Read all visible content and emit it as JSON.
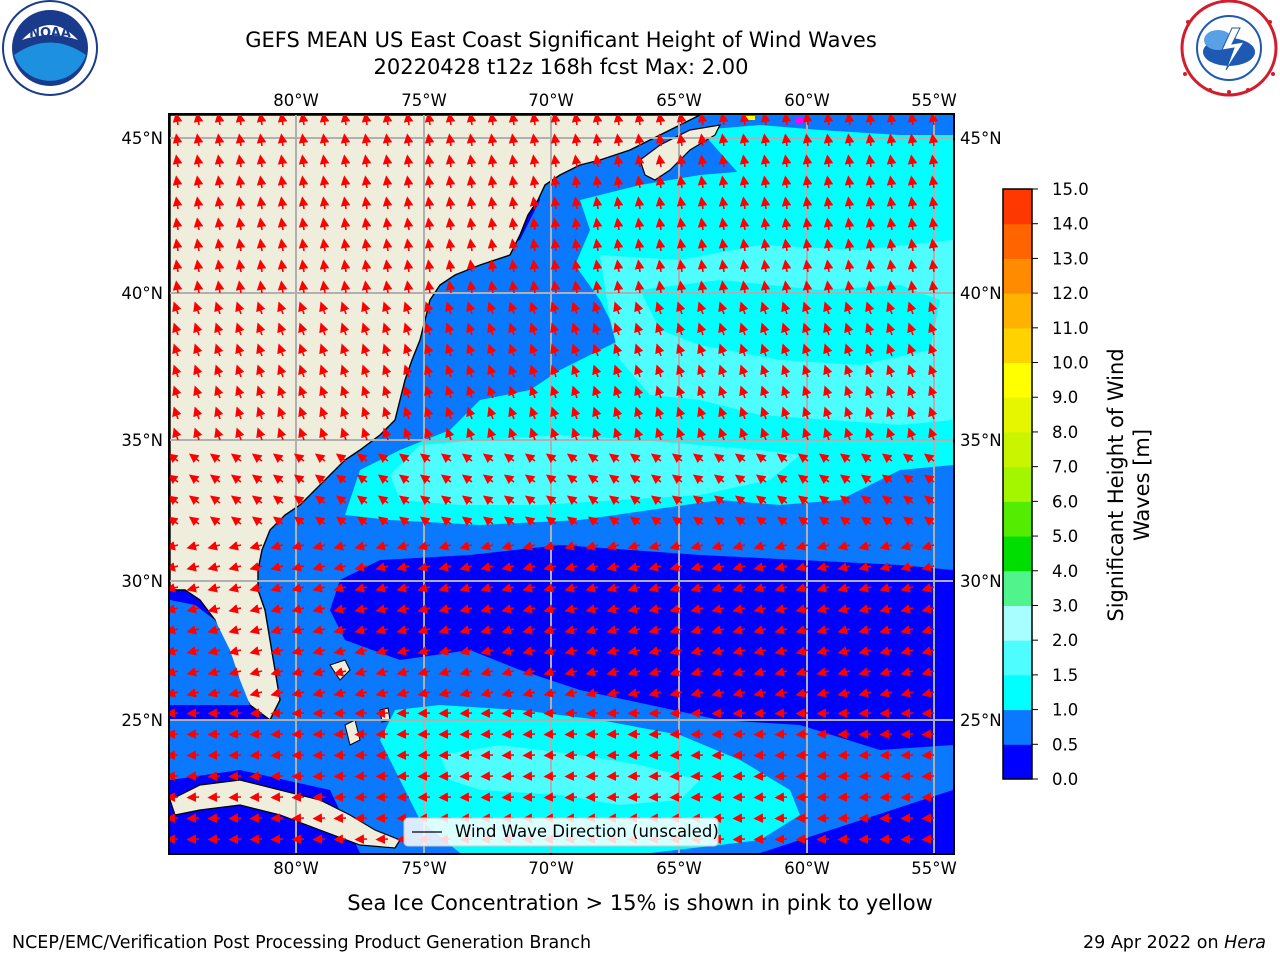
{
  "header": {
    "title_line1": "GEFS MEAN US East Coast Significant Height of Wind Waves",
    "title_line2": "20220428 t12z 168h fcst   Max: 2.00"
  },
  "logos": {
    "left": {
      "icon": "noaa-logo",
      "text": "NOAA",
      "ring_text": "NATIONAL OCEANIC AND ATMOSPHERIC ADMINISTRATION · U.S. DEPARTMENT OF COMMERCE"
    },
    "right": {
      "icon": "nws-logo",
      "ring_text": "NATIONAL WEATHER SERVICE"
    }
  },
  "map": {
    "lon_labels": [
      "80°W",
      "75°W",
      "70°W",
      "65°W",
      "60°W",
      "55°W"
    ],
    "lat_labels": [
      "45°N",
      "40°N",
      "35°N",
      "30°N",
      "25°N"
    ],
    "legend_label": "Wind Wave Direction (unscaled)",
    "arrow_color": "#ff0000",
    "land_color": "#efeddc"
  },
  "colorbar": {
    "title_line1": "Significant Height of Wind",
    "title_line2": "Waves [m]",
    "ticks": [
      "0.0",
      "0.5",
      "1.0",
      "1.5",
      "2.0",
      "3.0",
      "4.0",
      "5.0",
      "6.0",
      "7.0",
      "8.0",
      "9.0",
      "10.0",
      "11.0",
      "12.0",
      "13.0",
      "14.0",
      "15.0"
    ],
    "colors": [
      "#0000ff",
      "#0a78ff",
      "#00ffff",
      "#4dfdff",
      "#a8fdff",
      "#4ff58c",
      "#00de00",
      "#54ec00",
      "#a4f500",
      "#c9f500",
      "#e6f500",
      "#ffff00",
      "#ffd200",
      "#ffb300",
      "#ff8c00",
      "#ff6400",
      "#ff3700",
      "#ff0000"
    ]
  },
  "footer": {
    "sea_ice_note": "Sea Ice Concentration > 15% is shown in pink to yellow",
    "credit": "NCEP/EMC/Verification Post Processing Product Generation Branch",
    "date": "29 Apr 2022 on",
    "host": "Hera"
  }
}
